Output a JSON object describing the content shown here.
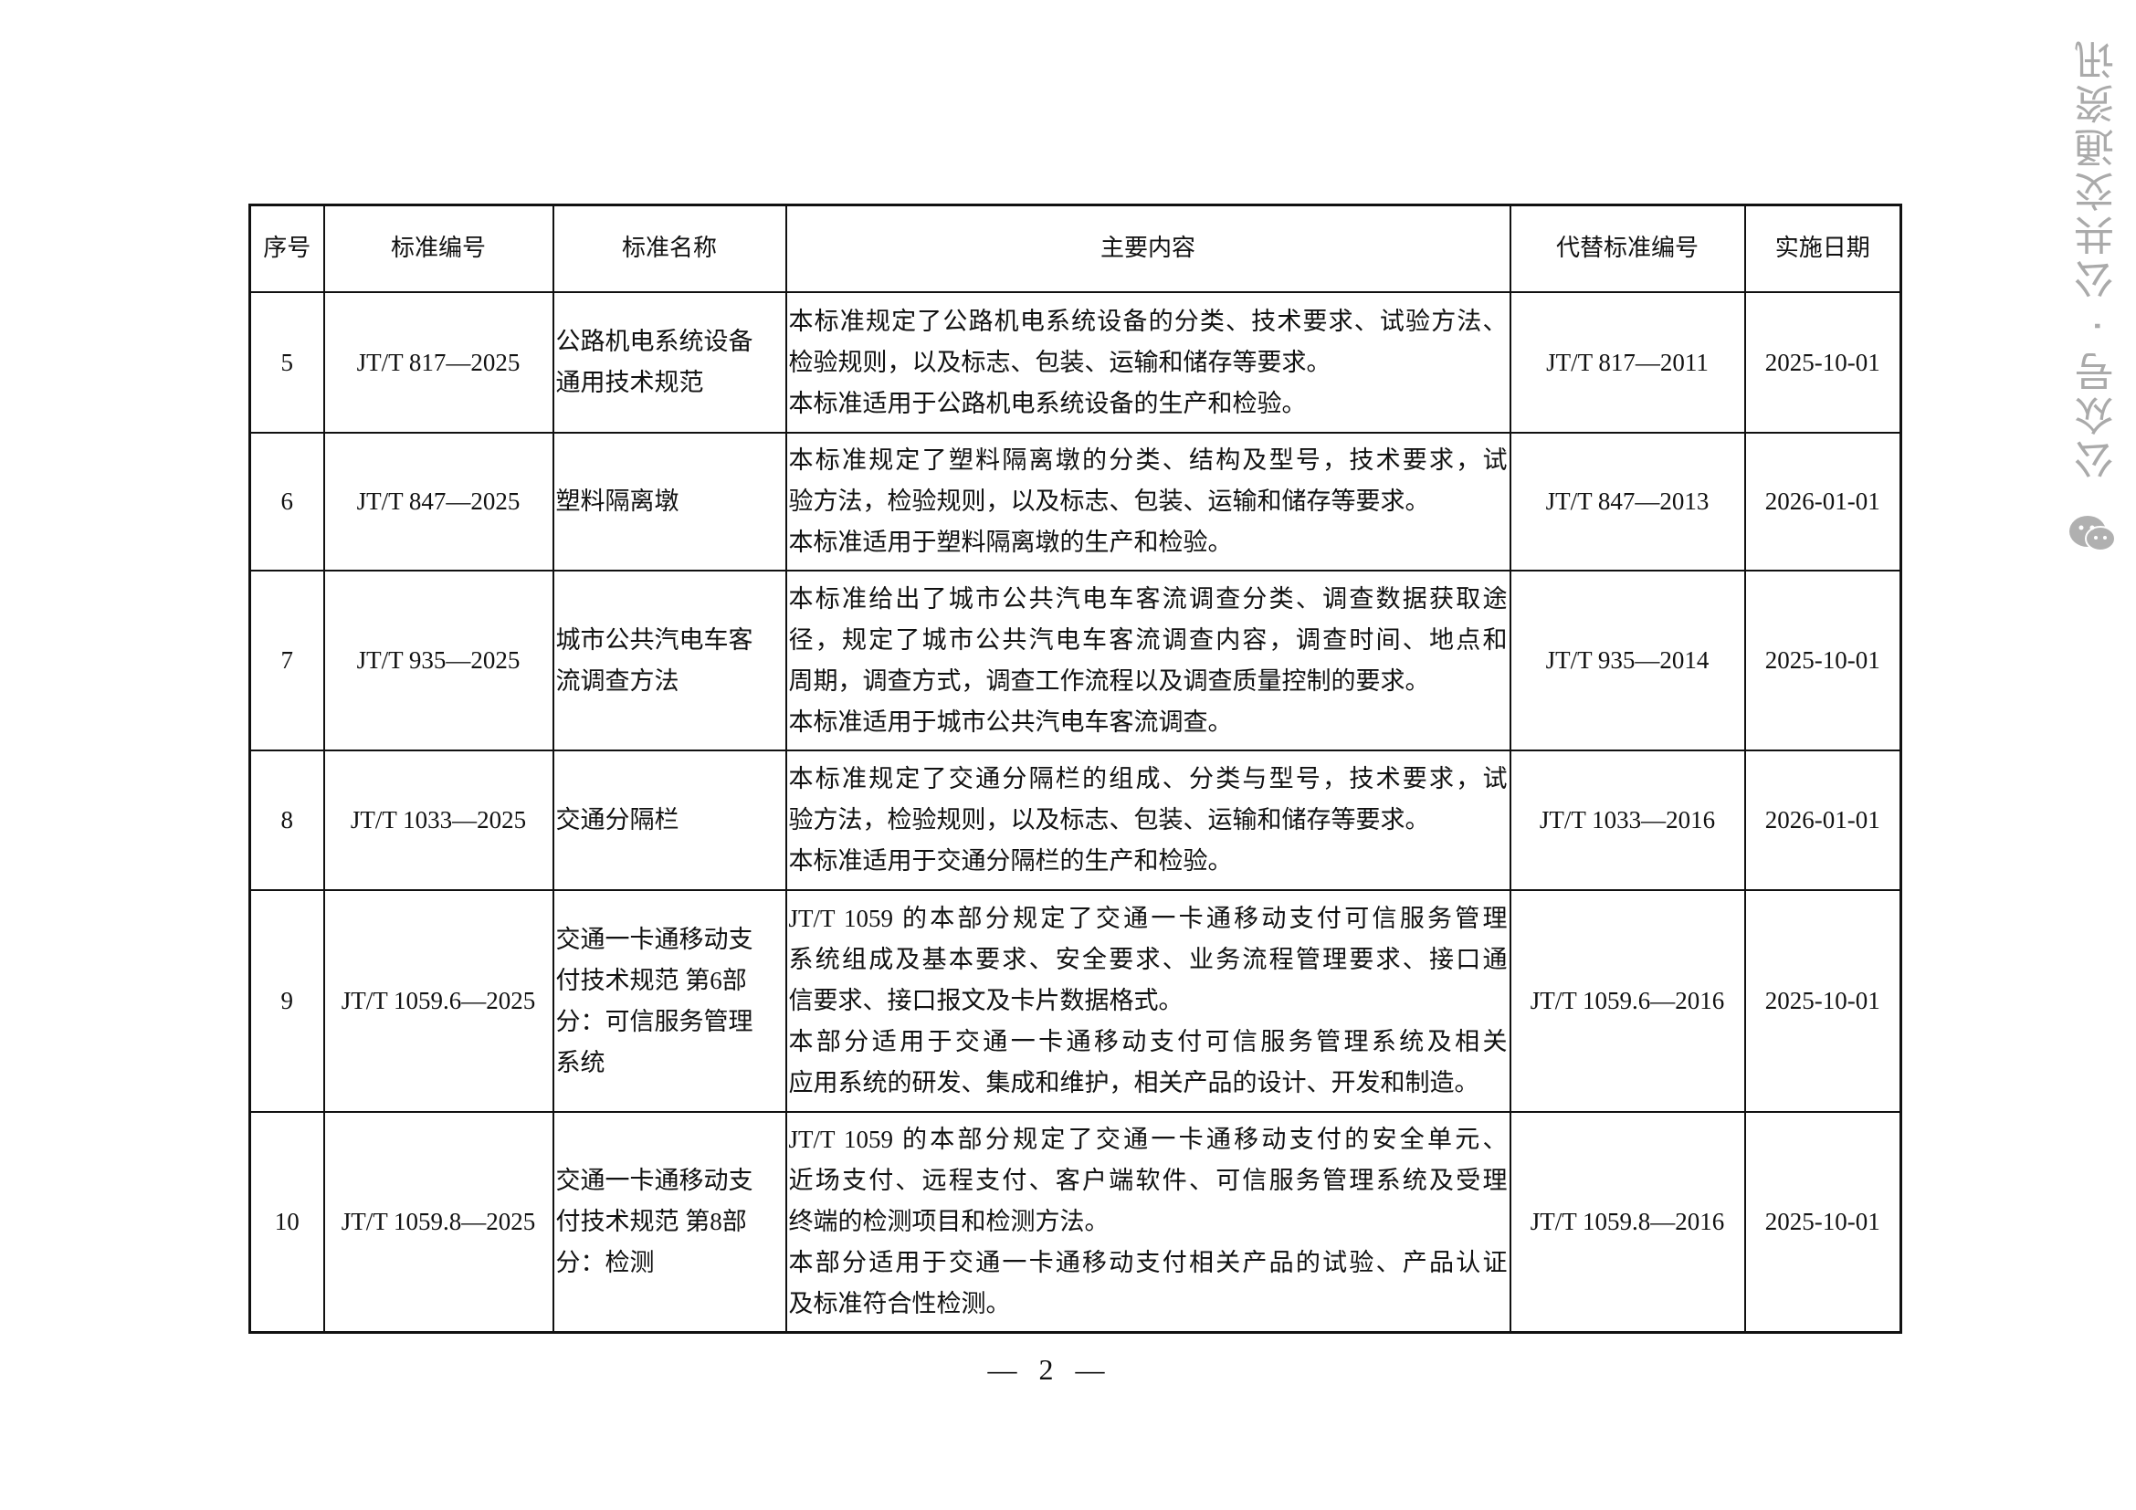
{
  "table": {
    "headers": [
      "序号",
      "标准编号",
      "标准名称",
      "主要内容",
      "代替标准编号",
      "实施日期"
    ],
    "rows": [
      {
        "no": "5",
        "code": "JT/T 817—2025",
        "name": [
          "公路机电系统设备",
          "通用技术规范"
        ],
        "content": [
          "本标准规定了公路机电系统设备的分类、技术要求、试验方法、",
          "检验规则，以及标志、包装、运输和储存等要求。",
          "本标准适用于公路机电系统设备的生产和检验。"
        ],
        "replaces": "JT/T 817—2011",
        "date": "2025-10-01"
      },
      {
        "no": "6",
        "code": "JT/T 847—2025",
        "name": [
          "塑料隔离墩"
        ],
        "content": [
          "本标准规定了塑料隔离墩的分类、结构及型号，技术要求，试",
          "验方法，检验规则，以及标志、包装、运输和储存等要求。",
          "本标准适用于塑料隔离墩的生产和检验。"
        ],
        "replaces": "JT/T 847—2013",
        "date": "2026-01-01"
      },
      {
        "no": "7",
        "code": "JT/T 935—2025",
        "name": [
          "城市公共汽电车客",
          "流调查方法"
        ],
        "content": [
          "本标准给出了城市公共汽电车客流调查分类、调查数据获取途",
          "径，规定了城市公共汽电车客流调查内容，调查时间、地点和",
          "周期，调查方式，调查工作流程以及调查质量控制的要求。",
          "本标准适用于城市公共汽电车客流调查。"
        ],
        "replaces": "JT/T 935—2014",
        "date": "2025-10-01"
      },
      {
        "no": "8",
        "code": "JT/T 1033—2025",
        "name": [
          "交通分隔栏"
        ],
        "content": [
          "本标准规定了交通分隔栏的组成、分类与型号，技术要求，试",
          "验方法，检验规则，以及标志、包装、运输和储存等要求。",
          "本标准适用于交通分隔栏的生产和检验。"
        ],
        "replaces": "JT/T 1033—2016",
        "date": "2026-01-01"
      },
      {
        "no": "9",
        "code": "JT/T 1059.6—2025",
        "name": [
          "交通一卡通移动支",
          "付技术规范 第6部",
          "分：可信服务管理",
          "系统"
        ],
        "content": [
          "JT/T 1059 的本部分规定了交通一卡通移动支付可信服务管理",
          "系统组成及基本要求、安全要求、业务流程管理要求、接口通",
          "信要求、接口报文及卡片数据格式。",
          "本部分适用于交通一卡通移动支付可信服务管理系统及相关",
          "应用系统的研发、集成和维护，相关产品的设计、开发和制造。"
        ],
        "replaces": "JT/T 1059.6—2016",
        "date": "2025-10-01"
      },
      {
        "no": "10",
        "code": "JT/T 1059.8—2025",
        "name": [
          "交通一卡通移动支",
          "付技术规范 第8部",
          "分：检测"
        ],
        "content": [
          "JT/T 1059 的本部分规定了交通一卡通移动支付的安全单元、",
          "近场支付、远程支付、客户端软件、可信服务管理系统及受理",
          "终端的检测项目和检测方法。",
          "本部分适用于交通一卡通移动支付相关产品的试验、产品认证",
          "及标准符合性检测。"
        ],
        "replaces": "JT/T 1059.8—2016",
        "date": "2025-10-01"
      }
    ]
  },
  "page_number": "— 2 —",
  "watermark": {
    "text": "公众号 · 公共交通资讯",
    "icon": "wechat-icon",
    "color": "#aaaaaa"
  }
}
